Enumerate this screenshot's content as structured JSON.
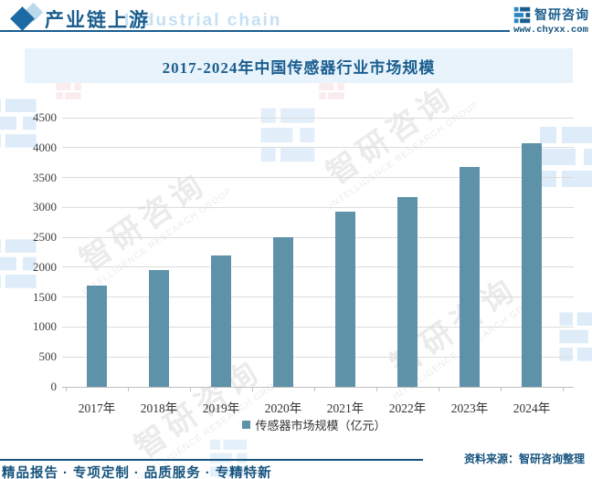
{
  "header": {
    "section_title": "产业链上游",
    "watermark_en": "Industrial chain",
    "brand_name": "智研咨询",
    "website": "www.chyxx.com"
  },
  "chart_data": {
    "type": "bar",
    "title": "2017-2024年中国传感器行业市场规模",
    "categories": [
      "2017年",
      "2018年",
      "2019年",
      "2020年",
      "2021年",
      "2022年",
      "2023年",
      "2024年"
    ],
    "values": [
      1690,
      1945,
      2190,
      2505,
      2925,
      3170,
      3680,
      4080
    ],
    "legend": [
      "传感器市场规模（亿元）"
    ],
    "xlabel": "",
    "ylabel": "",
    "ylim": [
      0,
      4500
    ],
    "ytick_step": 500,
    "grid": true,
    "legend_position": "bottom",
    "bar_color": "#5e92a8"
  },
  "watermark": {
    "diagonal_cn": "智研咨询",
    "diagonal_en": "INTELLIGENCE RESEARCH GROUP"
  },
  "footer": {
    "source": "资料来源：智研咨询整理",
    "tagline": "精品报告 · 专项定制 · 品质服务 · 专精特新"
  },
  "colors": {
    "accent_blue": "#1a5e8f",
    "footer_blue": "#16537e",
    "bar_teal": "#5e92a8",
    "title_band_bg": "#e9f3fb",
    "gridline": "#dcdcdc"
  }
}
